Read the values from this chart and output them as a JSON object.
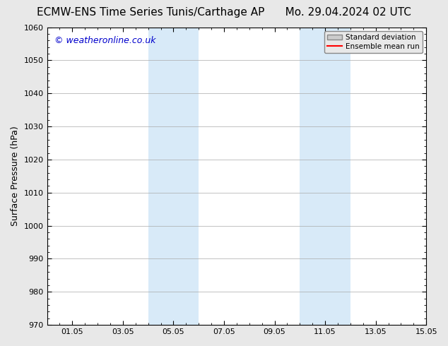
{
  "title_left": "ECMW-ENS Time Series Tunis/Carthage AP",
  "title_right": "Mo. 29.04.2024 02 UTC",
  "ylabel": "Surface Pressure (hPa)",
  "xlabel": "",
  "watermark": "© weatheronline.co.uk",
  "watermark_color": "#0000cc",
  "ylim": [
    970,
    1060
  ],
  "yticks": [
    970,
    980,
    990,
    1000,
    1010,
    1020,
    1030,
    1040,
    1050,
    1060
  ],
  "xlim_start": 0,
  "xlim_end": 14,
  "xtick_labels": [
    "01.05",
    "03.05",
    "05.05",
    "07.05",
    "09.05",
    "11.05",
    "13.05",
    "15.05"
  ],
  "xtick_positions": [
    1,
    3,
    5,
    7,
    9,
    11,
    13,
    15
  ],
  "shaded_bands": [
    {
      "x_start": 4.0,
      "x_end": 6.0,
      "color": "#d8eaf8"
    },
    {
      "x_start": 10.0,
      "x_end": 12.0,
      "color": "#d8eaf8"
    }
  ],
  "legend_items": [
    {
      "label": "Standard deviation",
      "color": "#cccccc",
      "type": "patch"
    },
    {
      "label": "Ensemble mean run",
      "color": "#ff0000",
      "type": "line"
    }
  ],
  "background_color": "#e8e8e8",
  "plot_bg_color": "#ffffff",
  "grid_color": "#aaaaaa",
  "title_fontsize": 11,
  "axis_label_fontsize": 9,
  "tick_fontsize": 8,
  "watermark_fontsize": 9
}
